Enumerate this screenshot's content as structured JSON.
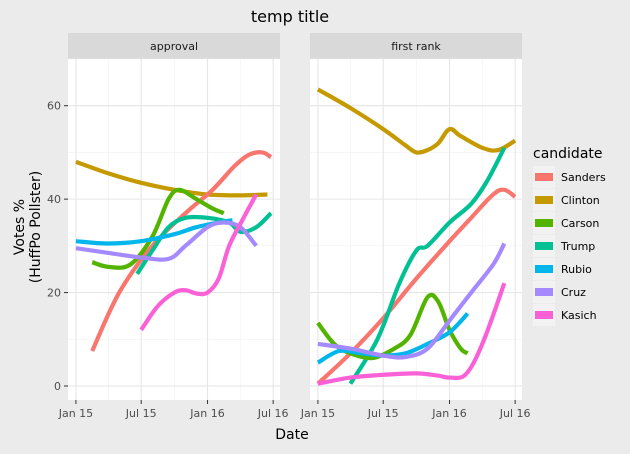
{
  "chart_data": {
    "type": "line",
    "title": "temp title",
    "xlabel": "Date",
    "ylabel_lines": [
      "Votes %",
      "(HuffPo Pollster)"
    ],
    "ylim": [
      -3,
      70
    ],
    "y_ticks": [
      0,
      20,
      40,
      60
    ],
    "x_range": [
      "2014-12-10",
      "2016-07-20"
    ],
    "x_ticks": [
      {
        "date": "2015-01-01",
        "label": "Jan 15"
      },
      {
        "date": "2015-07-01",
        "label": "Jul 15"
      },
      {
        "date": "2016-01-01",
        "label": "Jan 16"
      },
      {
        "date": "2016-07-01",
        "label": "Jul 16"
      }
    ],
    "grid": true,
    "legend": {
      "title": "candidate",
      "placement": "right",
      "entries": [
        {
          "name": "Sanders",
          "color": "#F8766D"
        },
        {
          "name": "Clinton",
          "color": "#C49A00"
        },
        {
          "name": "Carson",
          "color": "#53B400"
        },
        {
          "name": "Trump",
          "color": "#00C094"
        },
        {
          "name": "Rubio",
          "color": "#00B6EB"
        },
        {
          "name": "Cruz",
          "color": "#A58AFF"
        },
        {
          "name": "Kasich",
          "color": "#FB61D7"
        }
      ]
    },
    "panels": [
      {
        "label": "approval",
        "series": [
          {
            "name": "Clinton",
            "points": [
              [
                "2015-01-01",
                48
              ],
              [
                "2015-04-01",
                45.5
              ],
              [
                "2015-07-01",
                43.5
              ],
              [
                "2015-10-01",
                42
              ],
              [
                "2016-01-01",
                41
              ],
              [
                "2016-04-01",
                40.8
              ],
              [
                "2016-06-15",
                41
              ]
            ]
          },
          {
            "name": "Sanders",
            "points": [
              [
                "2015-02-15",
                7.5
              ],
              [
                "2015-05-01",
                20
              ],
              [
                "2015-08-01",
                30
              ],
              [
                "2015-11-01",
                37
              ],
              [
                "2016-01-15",
                42
              ],
              [
                "2016-03-15",
                47
              ],
              [
                "2016-04-25",
                49.5
              ],
              [
                "2016-06-01",
                50
              ],
              [
                "2016-06-25",
                49
              ]
            ]
          },
          {
            "name": "Carson",
            "points": [
              [
                "2015-02-15",
                26.5
              ],
              [
                "2015-04-01",
                25.5
              ],
              [
                "2015-06-01",
                26
              ],
              [
                "2015-08-01",
                32
              ],
              [
                "2015-09-15",
                40
              ],
              [
                "2015-10-15",
                42
              ],
              [
                "2015-12-01",
                40
              ],
              [
                "2016-01-15",
                38
              ],
              [
                "2016-02-15",
                37
              ]
            ]
          },
          {
            "name": "Trump",
            "points": [
              [
                "2015-06-20",
                24
              ],
              [
                "2015-08-01",
                29
              ],
              [
                "2015-09-15",
                34
              ],
              [
                "2015-11-01",
                36
              ],
              [
                "2016-01-01",
                36
              ],
              [
                "2016-03-01",
                35
              ],
              [
                "2016-04-01",
                33
              ],
              [
                "2016-05-15",
                34
              ],
              [
                "2016-06-25",
                37
              ]
            ]
          },
          {
            "name": "Rubio",
            "points": [
              [
                "2015-01-01",
                31
              ],
              [
                "2015-04-01",
                30.5
              ],
              [
                "2015-07-01",
                31
              ],
              [
                "2015-10-01",
                32.5
              ],
              [
                "2015-12-01",
                34
              ],
              [
                "2016-02-01",
                35
              ],
              [
                "2016-03-10",
                35.5
              ]
            ]
          },
          {
            "name": "Cruz",
            "points": [
              [
                "2015-01-01",
                29.5
              ],
              [
                "2015-04-01",
                28.5
              ],
              [
                "2015-07-01",
                27.5
              ],
              [
                "2015-09-15",
                27.2
              ],
              [
                "2015-11-01",
                30
              ],
              [
                "2016-01-01",
                34
              ],
              [
                "2016-02-15",
                35
              ],
              [
                "2016-04-01",
                34
              ],
              [
                "2016-05-15",
                30
              ]
            ]
          },
          {
            "name": "Kasich",
            "points": [
              [
                "2015-07-01",
                12
              ],
              [
                "2015-08-15",
                17
              ],
              [
                "2015-10-01",
                20
              ],
              [
                "2015-11-01",
                20.5
              ],
              [
                "2015-12-01",
                19.8
              ],
              [
                "2016-01-01",
                20
              ],
              [
                "2016-02-01",
                23
              ],
              [
                "2016-03-01",
                30
              ],
              [
                "2016-04-10",
                36
              ],
              [
                "2016-05-15",
                41
              ]
            ]
          }
        ]
      },
      {
        "label": "first rank",
        "series": [
          {
            "name": "Clinton",
            "points": [
              [
                "2015-01-01",
                63.5
              ],
              [
                "2015-04-01",
                59.5
              ],
              [
                "2015-07-01",
                55
              ],
              [
                "2015-09-01",
                51.5
              ],
              [
                "2015-10-01",
                50
              ],
              [
                "2015-11-01",
                50.5
              ],
              [
                "2015-12-01",
                52
              ],
              [
                "2016-01-01",
                55
              ],
              [
                "2016-02-01",
                53.5
              ],
              [
                "2016-04-01",
                51
              ],
              [
                "2016-05-15",
                50.5
              ],
              [
                "2016-07-01",
                52.5
              ]
            ]
          },
          {
            "name": "Sanders",
            "points": [
              [
                "2015-01-01",
                0.5
              ],
              [
                "2015-04-01",
                7
              ],
              [
                "2015-07-01",
                14.5
              ],
              [
                "2015-10-01",
                23
              ],
              [
                "2016-01-01",
                31
              ],
              [
                "2016-03-01",
                36
              ],
              [
                "2016-05-01",
                41
              ],
              [
                "2016-06-01",
                42
              ],
              [
                "2016-07-01",
                40.5
              ]
            ]
          },
          {
            "name": "Trump",
            "points": [
              [
                "2015-04-01",
                0.5
              ],
              [
                "2015-06-15",
                10
              ],
              [
                "2015-08-15",
                22
              ],
              [
                "2015-10-01",
                29
              ],
              [
                "2015-11-01",
                30
              ],
              [
                "2016-01-01",
                35
              ],
              [
                "2016-03-01",
                39
              ],
              [
                "2016-04-15",
                44
              ],
              [
                "2016-06-01",
                51
              ]
            ]
          },
          {
            "name": "Carson",
            "points": [
              [
                "2015-01-01",
                13.5
              ],
              [
                "2015-02-15",
                9
              ],
              [
                "2015-04-01",
                7
              ],
              [
                "2015-06-01",
                6
              ],
              [
                "2015-08-01",
                8
              ],
              [
                "2015-09-15",
                11
              ],
              [
                "2015-11-01",
                19
              ],
              [
                "2015-12-01",
                18
              ],
              [
                "2016-01-01",
                12
              ],
              [
                "2016-02-01",
                8
              ],
              [
                "2016-02-20",
                7
              ]
            ]
          },
          {
            "name": "Rubio",
            "points": [
              [
                "2015-01-01",
                5
              ],
              [
                "2015-03-01",
                7.5
              ],
              [
                "2015-05-01",
                7
              ],
              [
                "2015-07-01",
                6.5
              ],
              [
                "2015-09-01",
                7
              ],
              [
                "2015-11-01",
                9
              ],
              [
                "2016-01-01",
                11.5
              ],
              [
                "2016-02-20",
                15.5
              ]
            ]
          },
          {
            "name": "Cruz",
            "points": [
              [
                "2015-01-01",
                9
              ],
              [
                "2015-04-01",
                8
              ],
              [
                "2015-07-01",
                6.5
              ],
              [
                "2015-09-01",
                6.2
              ],
              [
                "2015-11-01",
                8
              ],
              [
                "2016-01-01",
                14
              ],
              [
                "2016-03-01",
                20
              ],
              [
                "2016-05-01",
                26
              ],
              [
                "2016-06-01",
                30.5
              ]
            ]
          },
          {
            "name": "Kasich",
            "points": [
              [
                "2015-01-01",
                0.5
              ],
              [
                "2015-04-01",
                1.8
              ],
              [
                "2015-07-01",
                2.4
              ],
              [
                "2015-10-01",
                2.7
              ],
              [
                "2015-12-01",
                2.2
              ],
              [
                "2016-01-01",
                1.8
              ],
              [
                "2016-02-15",
                2.5
              ],
              [
                "2016-04-01",
                9
              ],
              [
                "2016-06-01",
                22
              ]
            ]
          }
        ]
      }
    ]
  }
}
